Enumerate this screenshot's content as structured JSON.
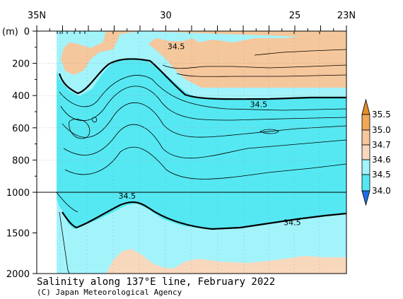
{
  "chart_data": {
    "type": "heatmap",
    "title": "Salinity along 137°E line, February 2022",
    "credit": "(C) Japan Meteorological Agency",
    "x_axis": {
      "ticks": [
        "35N",
        "30",
        "25",
        "23N"
      ],
      "values": [
        35,
        30,
        25,
        23
      ],
      "range": [
        35,
        23
      ]
    },
    "y_axis": {
      "unit": "(m)",
      "upper_ticks": [
        "0",
        "200",
        "400",
        "600",
        "800",
        "1000"
      ],
      "lower_ticks": [
        "1500",
        "2000"
      ],
      "break_depth": 1000,
      "range": [
        0,
        2000
      ]
    },
    "colorbar": {
      "labels": [
        "35.5",
        "35.0",
        "34.7",
        "34.6",
        "34.5",
        "34.0"
      ],
      "colors": {
        "above_35.5": "#e58c2c",
        "35.0_35.5": "#f0a857",
        "34.7_35.0": "#f5c79c",
        "34.6_34.7": "#f8d8bd",
        "34.5_34.6": "#a3f3fb",
        "34.0_34.5": "#55e8f2",
        "below_34.0": "#1d6fe8"
      }
    },
    "contour_labels": [
      {
        "text": "34.5",
        "lat": 29.6,
        "depth": 95
      },
      {
        "text": "34.5",
        "lat": 26.4,
        "depth": 455
      },
      {
        "text": "34.5",
        "lat": 31.5,
        "depth": 1045
      },
      {
        "text": "34.5",
        "lat": 25.1,
        "depth": 1370
      }
    ]
  }
}
